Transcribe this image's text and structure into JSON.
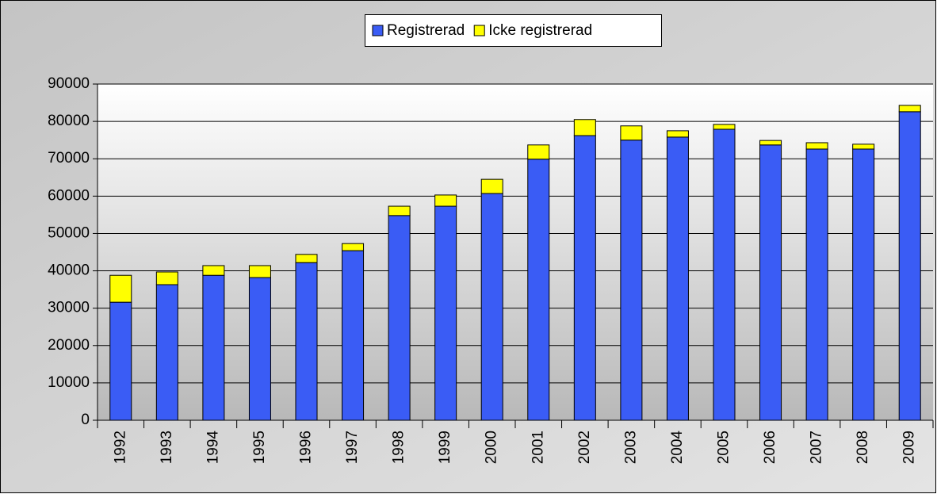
{
  "chart_data": {
    "type": "stacked_bar",
    "categories": [
      "1992",
      "1993",
      "1994",
      "1995",
      "1996",
      "1997",
      "1998",
      "1999",
      "2000",
      "2001",
      "2002",
      "2003",
      "2004",
      "2005",
      "2006",
      "2007",
      "2008",
      "2009"
    ],
    "series": [
      {
        "name": "Registrerad",
        "color": "#3a5cf5",
        "values": [
          31600,
          36300,
          38800,
          38200,
          42200,
          45400,
          54800,
          57300,
          60700,
          69900,
          76200,
          75000,
          75800,
          77900,
          73700,
          72600,
          72600,
          82600
        ]
      },
      {
        "name": "Icke registrerad",
        "color": "#ffff00",
        "values": [
          7200,
          3400,
          2600,
          3200,
          2200,
          1900,
          2500,
          3000,
          3800,
          3800,
          4300,
          3800,
          1700,
          1300,
          1200,
          1700,
          1300,
          1700
        ]
      }
    ],
    "ylim": [
      0,
      90000
    ],
    "yticks": [
      0,
      10000,
      20000,
      30000,
      40000,
      50000,
      60000,
      70000,
      80000,
      90000
    ],
    "grid": true,
    "legend": "top"
  }
}
